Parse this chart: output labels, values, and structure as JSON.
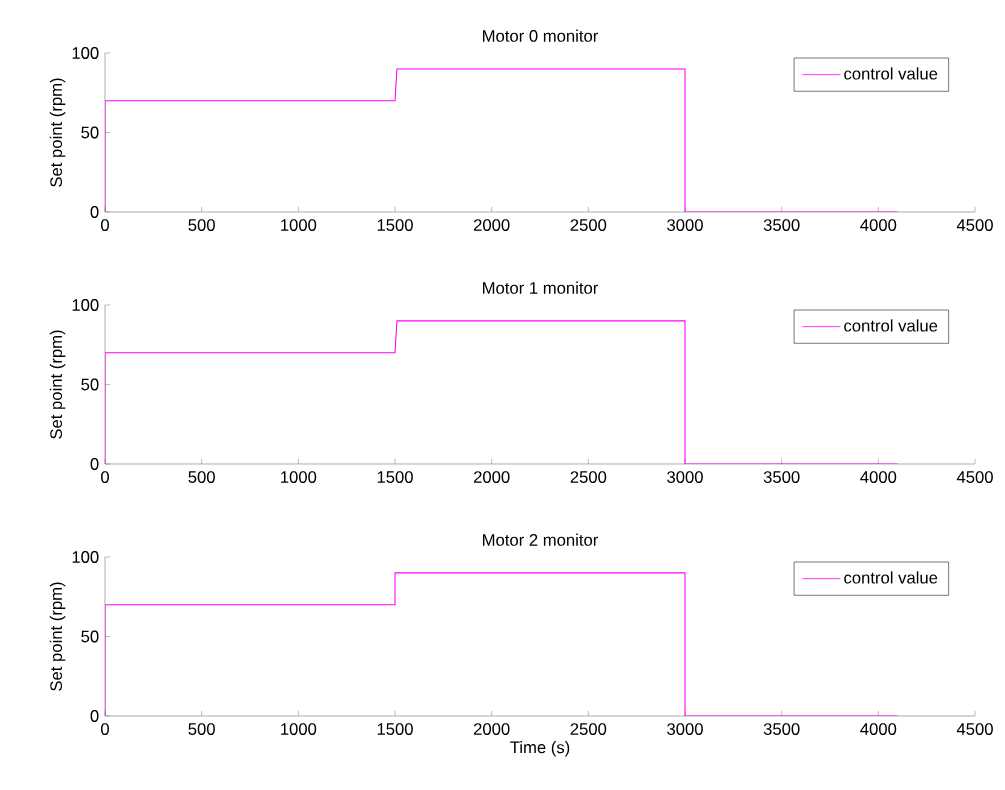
{
  "chart_data": [
    {
      "type": "line",
      "title": "Motor 0 monitor",
      "ylabel": "Set point (rpm)",
      "xlim": [
        0,
        4500
      ],
      "ylim": [
        0,
        100
      ],
      "xticks": [
        0,
        500,
        1000,
        1500,
        2000,
        2500,
        3000,
        3500,
        4000,
        4500
      ],
      "yticks": [
        0,
        50,
        100
      ],
      "legend": "top right",
      "series": [
        {
          "name": "control value",
          "color": "#ff00ff",
          "x": [
            0,
            0,
            1500,
            1510,
            3000,
            3000,
            4100
          ],
          "values": [
            0,
            70,
            70,
            90,
            90,
            0,
            0
          ]
        }
      ]
    },
    {
      "type": "line",
      "title": "Motor 1 monitor",
      "ylabel": "Set point (rpm)",
      "xlim": [
        0,
        4500
      ],
      "ylim": [
        0,
        100
      ],
      "xticks": [
        0,
        500,
        1000,
        1500,
        2000,
        2500,
        3000,
        3500,
        4000,
        4500
      ],
      "yticks": [
        0,
        50,
        100
      ],
      "legend": "top right",
      "series": [
        {
          "name": "control value",
          "color": "#ff00ff",
          "x": [
            0,
            0,
            1500,
            1510,
            3000,
            3000,
            4100
          ],
          "values": [
            0,
            70,
            70,
            90,
            90,
            0,
            0
          ]
        }
      ]
    },
    {
      "type": "line",
      "title": "Motor 2 monitor",
      "xlabel": "Time (s)",
      "ylabel": "Set point (rpm)",
      "xlim": [
        0,
        4500
      ],
      "ylim": [
        0,
        100
      ],
      "xticks": [
        0,
        500,
        1000,
        1500,
        2000,
        2500,
        3000,
        3500,
        4000,
        4500
      ],
      "yticks": [
        0,
        50,
        100
      ],
      "legend": "top right",
      "series": [
        {
          "name": "control value",
          "color": "#ff00ff",
          "x": [
            0,
            0,
            1500,
            1500,
            3000,
            3000,
            4100
          ],
          "values": [
            0,
            70,
            70,
            90,
            90,
            0,
            0
          ]
        }
      ]
    }
  ]
}
